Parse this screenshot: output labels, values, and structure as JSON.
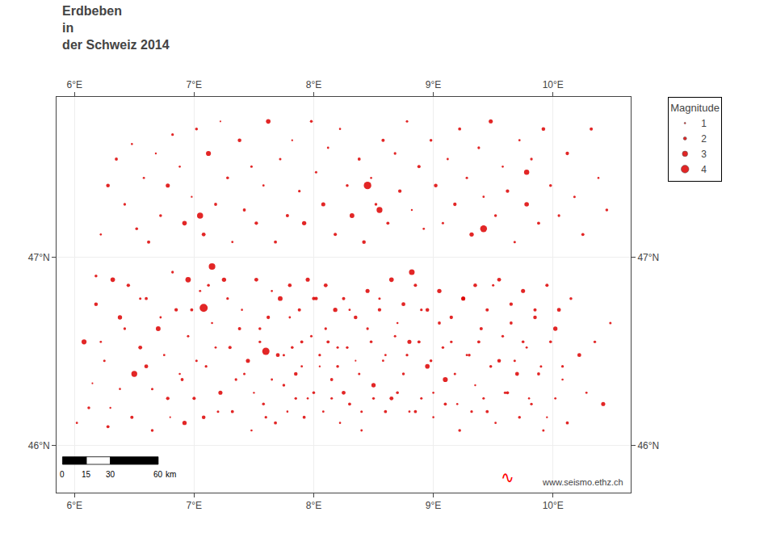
{
  "chart_data": {
    "type": "scatter",
    "title": "Erdbeben\nin\nder Schweiz 2014",
    "x": [
      6.02,
      6.08,
      6.15,
      6.18,
      6.22,
      6.25,
      6.28,
      6.3,
      6.35,
      6.38,
      6.42,
      6.45,
      6.48,
      6.5,
      6.52,
      6.55,
      6.58,
      6.6,
      6.62,
      6.65,
      6.68,
      6.7,
      6.72,
      6.75,
      6.78,
      6.8,
      6.82,
      6.85,
      6.88,
      6.9,
      6.92,
      6.95,
      6.98,
      7.0,
      7.02,
      7.05,
      7.08,
      7.1,
      7.12,
      7.15,
      7.18,
      7.2,
      7.22,
      7.25,
      7.28,
      7.3,
      7.32,
      7.35,
      7.38,
      7.4,
      7.42,
      7.45,
      7.48,
      7.5,
      7.52,
      7.55,
      7.58,
      7.6,
      7.62,
      7.65,
      7.68,
      7.7,
      7.72,
      7.75,
      7.78,
      7.8,
      7.82,
      7.85,
      7.88,
      7.9,
      7.92,
      7.95,
      7.98,
      8.0,
      8.02,
      8.05,
      8.08,
      8.1,
      8.12,
      8.15,
      8.18,
      8.2,
      8.22,
      8.25,
      8.28,
      8.3,
      8.32,
      8.35,
      8.38,
      8.4,
      8.42,
      8.45,
      8.48,
      8.5,
      8.52,
      8.55,
      8.58,
      8.6,
      8.62,
      8.65,
      8.68,
      8.7,
      8.72,
      8.75,
      8.78,
      8.8,
      8.82,
      8.85,
      8.88,
      8.9,
      8.92,
      8.95,
      8.98,
      9.0,
      9.02,
      9.05,
      9.08,
      9.1,
      9.12,
      9.15,
      9.18,
      9.2,
      9.22,
      9.25,
      9.28,
      9.3,
      9.32,
      9.35,
      9.38,
      9.4,
      9.42,
      9.45,
      9.48,
      9.5,
      9.52,
      9.55,
      9.58,
      9.6,
      9.62,
      9.65,
      9.68,
      9.7,
      9.72,
      9.75,
      9.78,
      9.8,
      9.82,
      9.85,
      9.88,
      9.9,
      9.92,
      9.95,
      9.98,
      10.02,
      10.05,
      10.08,
      10.12,
      10.15,
      10.18,
      10.22,
      10.25,
      10.28,
      10.32,
      10.35,
      10.38,
      10.42,
      10.45,
      10.48,
      6.12,
      6.18,
      6.22,
      6.28,
      6.32,
      6.38,
      6.42,
      6.48,
      6.55,
      6.6,
      6.65,
      6.72,
      6.78,
      6.82,
      6.88,
      6.92,
      6.98,
      7.02,
      7.08,
      7.12,
      7.18,
      7.22,
      7.28,
      7.32,
      7.38,
      7.42,
      7.48,
      7.52,
      7.55,
      7.58,
      7.62,
      7.65,
      7.68,
      7.72,
      7.75,
      7.78,
      7.8,
      7.82,
      7.85,
      7.88,
      7.9,
      7.92,
      7.95,
      7.98,
      8.0,
      8.02,
      8.05,
      8.08,
      8.1,
      8.12,
      8.15,
      8.18,
      8.2,
      8.22,
      8.25,
      8.28,
      8.3,
      8.35,
      8.38,
      8.4,
      8.45,
      8.48,
      8.5,
      8.55,
      8.58,
      8.6,
      8.65,
      8.68,
      8.7,
      8.75,
      8.78,
      8.8,
      8.85,
      8.88,
      8.9,
      8.95,
      8.98,
      9.0,
      9.05,
      9.08,
      9.1,
      9.15,
      9.18,
      9.22,
      9.25,
      9.28,
      9.32,
      9.35,
      9.38,
      9.42,
      9.45,
      9.48,
      9.52,
      9.55,
      9.58,
      9.62,
      9.65,
      9.68,
      9.72,
      9.75,
      9.78,
      9.82,
      9.85,
      9.88,
      9.92,
      9.95,
      9.98,
      10.02,
      10.05,
      10.08,
      10.12,
      7.15,
      7.6,
      8.55,
      9.42,
      8.82,
      7.05,
      9.78,
      6.95,
      7.08,
      8.45
    ],
    "values": [
      46.12,
      46.55,
      46.33,
      46.9,
      47.12,
      46.45,
      47.38,
      46.2,
      47.52,
      46.68,
      47.28,
      46.85,
      47.6,
      46.38,
      47.15,
      46.52,
      47.42,
      46.78,
      47.08,
      46.3,
      47.55,
      46.62,
      47.22,
      46.48,
      47.38,
      46.15,
      47.65,
      46.72,
      47.48,
      46.35,
      47.18,
      46.58,
      47.32,
      46.25,
      47.68,
      46.82,
      47.12,
      46.42,
      47.55,
      46.65,
      47.28,
      46.18,
      47.72,
      46.88,
      47.42,
      46.52,
      47.08,
      46.35,
      47.62,
      46.72,
      47.25,
      46.45,
      47.48,
      46.28,
      47.18,
      46.62,
      47.38,
      46.15,
      47.72,
      46.82,
      47.08,
      46.48,
      47.52,
      46.32,
      47.22,
      46.68,
      47.62,
      46.38,
      47.35,
      46.55,
      47.18,
      46.25,
      47.72,
      46.78,
      47.45,
      46.42,
      47.28,
      46.62,
      47.58,
      46.35,
      47.12,
      46.52,
      47.68,
      46.28,
      47.38,
      46.72,
      47.22,
      46.45,
      47.52,
      46.18,
      47.08,
      46.62,
      47.42,
      46.32,
      47.28,
      46.78,
      47.62,
      46.48,
      47.18,
      46.25,
      47.55,
      46.65,
      47.35,
      46.38,
      47.72,
      46.55,
      47.25,
      46.18,
      47.48,
      46.72,
      47.15,
      46.42,
      47.62,
      46.28,
      47.38,
      46.65,
      47.18,
      46.35,
      47.52,
      46.55,
      47.28,
      46.22,
      47.68,
      46.78,
      47.42,
      46.48,
      47.12,
      46.32,
      47.58,
      46.62,
      47.32,
      46.18,
      47.72,
      46.85,
      47.22,
      46.45,
      47.48,
      46.28,
      47.35,
      46.65,
      47.08,
      46.38,
      47.62,
      46.55,
      47.28,
      46.25,
      47.52,
      46.72,
      47.18,
      46.42,
      47.68,
      46.15,
      47.38,
      46.62,
      47.22,
      46.35,
      47.55,
      46.78,
      47.32,
      46.48,
      47.12,
      46.28,
      47.68,
      46.55,
      47.42,
      46.22,
      47.25,
      46.65,
      46.2,
      46.75,
      46.55,
      46.1,
      46.88,
      46.3,
      46.62,
      46.15,
      46.78,
      46.42,
      46.08,
      46.68,
      46.25,
      46.92,
      46.38,
      46.12,
      46.72,
      46.45,
      46.15,
      46.85,
      46.52,
      46.28,
      46.78,
      46.18,
      46.62,
      46.38,
      46.08,
      46.88,
      46.55,
      46.22,
      46.68,
      46.35,
      46.12,
      46.78,
      46.48,
      46.18,
      46.85,
      46.52,
      46.25,
      46.72,
      46.42,
      46.15,
      46.88,
      46.58,
      46.28,
      46.78,
      46.48,
      46.18,
      46.85,
      46.55,
      46.25,
      46.72,
      46.42,
      46.12,
      46.78,
      46.52,
      46.22,
      46.68,
      46.38,
      46.08,
      46.82,
      46.55,
      46.25,
      46.72,
      46.45,
      46.18,
      46.88,
      46.58,
      46.28,
      46.75,
      46.48,
      46.18,
      46.85,
      46.55,
      46.25,
      46.72,
      46.45,
      46.15,
      46.82,
      46.52,
      46.22,
      46.68,
      46.38,
      46.08,
      46.78,
      46.48,
      46.18,
      46.85,
      46.55,
      46.25,
      46.72,
      46.42,
      46.12,
      46.88,
      46.58,
      46.28,
      46.75,
      46.45,
      46.15,
      46.82,
      46.52,
      46.22,
      46.68,
      46.38,
      46.08,
      46.85,
      46.55,
      46.25,
      46.72,
      46.42,
      46.12,
      46.95,
      46.5,
      47.25,
      47.15,
      46.92,
      47.22,
      47.45,
      46.88,
      46.73,
      47.38
    ],
    "magnitudes": [
      1.5,
      2.8,
      1.2,
      1.8,
      1.4,
      1.6,
      2.2,
      1.3,
      1.9,
      2.5,
      1.7,
      2.1,
      1.4,
      3.2,
      1.8,
      2.3,
      1.5,
      1.9,
      2.0,
      1.6,
      1.3,
      2.7,
      1.8,
      1.5,
      2.4,
      1.2,
      1.7,
      2.1,
      1.4,
      1.9,
      2.6,
      1.6,
      1.3,
      2.0,
      1.8,
      1.5,
      2.3,
      1.7,
      2.8,
      1.4,
      1.9,
      1.6,
      1.2,
      2.5,
      1.8,
      2.0,
      1.5,
      1.7,
      2.2,
      1.4,
      1.9,
      2.4,
      1.6,
      1.3,
      2.1,
      1.8,
      1.5,
      1.7,
      2.6,
      1.4,
      1.9,
      2.3,
      1.6,
      1.8,
      2.0,
      1.5,
      1.3,
      2.2,
      1.7,
      1.9,
      2.5,
      1.4,
      1.8,
      2.1,
      1.6,
      1.3,
      2.4,
      1.7,
      1.5,
      1.9,
      2.0,
      1.6,
      1.4,
      2.3,
      1.8,
      1.5,
      2.7,
      1.2,
      1.9,
      1.6,
      2.2,
      1.7,
      1.4,
      2.5,
      1.8,
      1.6,
      2.0,
      1.5,
      1.9,
      2.3,
      1.7,
      1.4,
      2.1,
      1.8,
      1.6,
      2.4,
      1.3,
      1.9,
      2.0,
      1.7,
      1.5,
      2.6,
      1.8,
      1.4,
      2.2,
      1.9,
      1.6,
      2.8,
      1.5,
      1.7,
      2.1,
      1.4,
      1.9,
      2.3,
      1.6,
      1.8,
      2.5,
      1.3,
      1.7,
      2.0,
      1.5,
      1.9,
      2.4,
      1.6,
      1.8,
      2.2,
      1.4,
      1.7,
      2.1,
      1.9,
      1.6,
      2.3,
      1.5,
      1.8,
      2.6,
      1.4,
      1.7,
      2.0,
      1.9,
      1.6,
      2.2,
      1.3,
      1.8,
      2.5,
      1.7,
      1.4,
      2.1,
      1.8,
      1.6,
      2.3,
      1.9,
      1.5,
      2.0,
      1.7,
      1.4,
      2.4,
      1.8,
      1.6,
      1.8,
      2.2,
      1.5,
      1.9,
      2.6,
      1.4,
      1.7,
      2.0,
      1.6,
      2.3,
      1.8,
      1.5,
      2.1,
      1.7,
      1.4,
      2.5,
      1.9,
      1.6,
      2.2,
      1.8,
      1.5,
      2.4,
      1.7,
      1.9,
      2.0,
      1.6,
      1.4,
      2.3,
      1.7,
      1.8,
      2.1,
      1.5,
      1.9,
      2.7,
      1.6,
      1.4,
      2.2,
      1.8,
      1.7,
      2.0,
      1.5,
      1.9,
      2.4,
      1.6,
      1.8,
      2.1,
      1.7,
      1.5,
      2.3,
      1.9,
      1.6,
      2.5,
      1.8,
      1.4,
      2.0,
      1.7,
      1.9,
      2.2,
      1.6,
      1.5,
      2.4,
      1.8,
      1.7,
      2.1,
      1.5,
      1.9,
      2.6,
      1.6,
      1.8,
      2.3,
      1.7,
      1.5,
      2.0,
      1.9,
      1.6,
      2.2,
      1.8,
      1.4,
      2.5,
      1.7,
      1.9,
      2.1,
      1.6,
      1.8,
      2.4,
      1.5,
      1.7,
      2.2,
      1.9,
      1.6,
      2.0,
      1.8,
      1.5,
      2.3,
      1.7,
      1.9,
      2.1,
      1.6,
      1.8,
      2.4,
      1.5,
      1.7,
      2.2,
      1.9,
      1.6,
      2.0,
      1.8,
      1.5,
      2.3,
      1.7,
      1.9,
      3.5,
      3.8,
      3.2,
      3.6,
      3.1,
      3.3,
      2.9,
      3.0,
      4.1,
      3.9
    ],
    "color": "#dd0000",
    "xlim": [
      5.85,
      10.65
    ],
    "ylim": [
      45.75,
      47.85
    ],
    "xticks": [
      {
        "value": 6,
        "label": "6°E"
      },
      {
        "value": 7,
        "label": "7°E"
      },
      {
        "value": 8,
        "label": "8°E"
      },
      {
        "value": 9,
        "label": "9°E"
      },
      {
        "value": 10,
        "label": "10°E"
      }
    ],
    "yticks": [
      {
        "value": 46,
        "label": "46°N"
      },
      {
        "value": 47,
        "label": "47°N"
      }
    ],
    "grid": true,
    "legend": "upper right",
    "legend_title": "Magnitude",
    "legend_entries": [
      1,
      2,
      3,
      4
    ],
    "scalebar": {
      "ticks": [
        0,
        15,
        30,
        60
      ],
      "unit": "km",
      "km_per_degree": 75
    },
    "annotations": [
      {
        "text": "www.seismo.ethz.ch"
      },
      {
        "text": "∿",
        "color": "red"
      }
    ]
  }
}
